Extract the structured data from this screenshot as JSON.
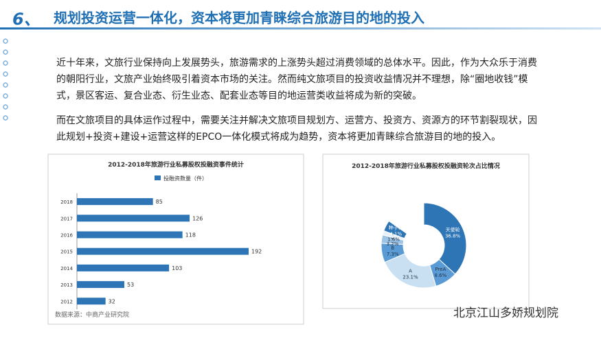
{
  "header": {
    "number": "6、",
    "title": "规划投资运营一体化，资本将更加青睐综合旅游目的地的投入"
  },
  "paragraphs": [
    "近十年来，文旅行业保持向上发展势头，旅游需求的上涨势头超过消费领域的总体水平。因此，作为大众乐于消费的朝阳行业，文旅产业始终吸引着资本市场的关注。然而纯文旅项目的投资收益情况并不理想，除“圈地收钱”模式，景区客运、复合业态、衍生业态、配套业态等目的地运营类收益将成为新的突破。",
    "而在文旅项目的具体运作过程中，需要关注并解决文旅项目规划方、运营方、投资方、资源方的环节割裂现状，因此规划+投资+建设+运营这样的EPCO一体化模式将成为趋势，资本将更加青睐综合旅游目的地的投入。"
  ],
  "chart_data": [
    {
      "type": "bar",
      "title": "2012-2018年旅游行业私募股权投融资事件统计",
      "categories": [
        "2018",
        "2017",
        "2016",
        "2015",
        "2014",
        "2013",
        "2012"
      ],
      "series": [
        {
          "name": "投融资数量（件）",
          "color": "#2e75b6",
          "values": [
            85,
            126,
            118,
            192,
            103,
            53,
            32
          ]
        }
      ]
    },
    {
      "type": "pie",
      "title": "2012-2018年旅游行业私募股权投融资轮次占比情况",
      "categories": [
        "天使轮",
        "PreA",
        "A",
        "B",
        "C",
        "D",
        "种子轮"
      ],
      "values": [
        36.8,
        8.6,
        23.1,
        7.3,
        3.2,
        1.6,
        4.1
      ],
      "value_labels": [
        "36.8%",
        "8.6%",
        "23.1%",
        "7.3%",
        "3.2%",
        "1.6%",
        "4.1%"
      ],
      "colors": [
        "#2e75b6",
        "#5b9bd5",
        "#c9e0f3",
        "#5b9bd5",
        "#9dc3e6",
        "#e8f1fa",
        "#2e75b6"
      ]
    }
  ],
  "source": "数据来源：中商产业研究院",
  "watermark": "北京江山多娇规划院"
}
